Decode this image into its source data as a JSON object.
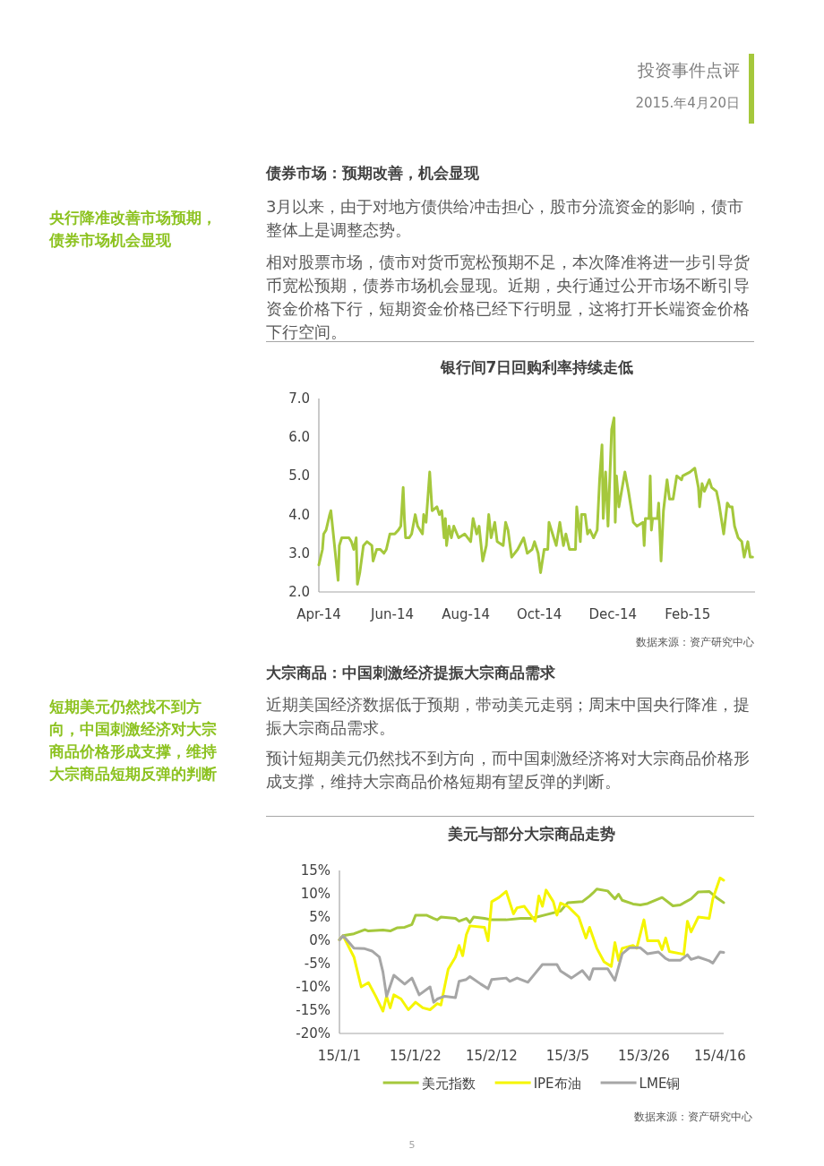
{
  "chart_data": [
    {
      "type": "other",
      "title": "债券市场：预期改善，机会显现",
      "annotations": [
        "投资事件点评",
        "2015.年4月20日",
        "央行降准改善市场预期，债券市场机会显现",
        "3月以来，由于对地方债供给冲击担心，股市分流资金的影响，债市整体上是调整态势。",
        "相对股票市场，债市对货币宽松预期不足，本次降准将进一步引导货币宽松预期，债券市场机会显现。近期，央行通过公开市场不断引导资金价格下行，短期资金价格已经下行明显，这将打开长端资金价格下行空间。",
        "5"
      ]
    },
    {
      "type": "line",
      "title": "银行间7日回购利率持续走低",
      "annotations": [
        "数据来源：资产研究中心"
      ],
      "color": "#a5c83c",
      "x": [
        "2014-04-01",
        "2014-04-04",
        "2014-04-05",
        "2014-04-07",
        "2014-04-10",
        "2014-04-11",
        "2014-04-13",
        "2014-04-17",
        "2014-04-18",
        "2014-04-20",
        "2014-04-23",
        "2014-04-26",
        "2014-04-28",
        "2014-04-30",
        "2014-05-02",
        "2014-05-03",
        "2014-05-05",
        "2014-05-08",
        "2014-05-11",
        "2014-05-15",
        "2014-05-16",
        "2014-05-19",
        "2014-05-22",
        "2014-05-25",
        "2014-05-27",
        "2014-05-30",
        "2014-06-03",
        "2014-06-06",
        "2014-06-08",
        "2014-06-10",
        "2014-06-11",
        "2014-06-12",
        "2014-06-15",
        "2014-06-17",
        "2014-06-20",
        "2014-06-22",
        "2014-06-26",
        "2014-06-27",
        "2014-06-29",
        "2014-07-02",
        "2014-07-04",
        "2014-07-08",
        "2014-07-10",
        "2014-07-12",
        "2014-07-14",
        "2014-07-15",
        "2014-07-16",
        "2014-07-18",
        "2014-07-20",
        "2014-07-22",
        "2014-07-26",
        "2014-07-31",
        "2014-08-05",
        "2014-08-07",
        "2014-08-10",
        "2014-08-12",
        "2014-08-15",
        "2014-08-18",
        "2014-08-20",
        "2014-08-22",
        "2014-08-25",
        "2014-08-27",
        "2014-09-01",
        "2014-09-03",
        "2014-09-05",
        "2014-09-08",
        "2014-09-13",
        "2014-09-18",
        "2014-09-21",
        "2014-09-25",
        "2014-09-27",
        "2014-09-30",
        "2014-10-02",
        "2014-10-05",
        "2014-10-08",
        "2014-10-09",
        "2014-10-12",
        "2014-10-15",
        "2014-10-18",
        "2014-10-21",
        "2014-10-23",
        "2014-10-26",
        "2014-10-31",
        "2014-11-01",
        "2014-11-04",
        "2014-11-05",
        "2014-11-08",
        "2014-11-10",
        "2014-11-12",
        "2014-11-15",
        "2014-11-18",
        "2014-11-20",
        "2014-11-22",
        "2014-11-23",
        "2014-11-25",
        "2014-11-27",
        "2014-11-30",
        "2014-12-02",
        "2014-12-03",
        "2014-12-04",
        "2014-12-06",
        "2014-12-11",
        "2014-12-14",
        "2014-12-18",
        "2014-12-21",
        "2014-12-26",
        "2014-12-27",
        "2014-12-28",
        "2014-12-31",
        "2015-01-01",
        "2015-01-02",
        "2015-01-03",
        "2015-01-07",
        "2015-01-08",
        "2015-01-10",
        "2015-01-12",
        "2015-01-15",
        "2015-01-17",
        "2015-01-20",
        "2015-01-23",
        "2015-01-27",
        "2015-01-28",
        "2015-02-03",
        "2015-02-07",
        "2015-02-10",
        "2015-02-11",
        "2015-02-13",
        "2015-02-15",
        "2015-02-19",
        "2015-02-21",
        "2015-02-25",
        "2015-02-27",
        "2015-03-03",
        "2015-03-06",
        "2015-03-08",
        "2015-03-10",
        "2015-03-12",
        "2015-03-15",
        "2015-03-18",
        "2015-03-20",
        "2015-03-23",
        "2015-03-25",
        "2015-03-27"
      ],
      "values": [
        2.7,
        3.1,
        3.5,
        3.6,
        4.0,
        4.1,
        3.5,
        2.3,
        3.2,
        3.4,
        3.4,
        3.4,
        3.3,
        3.1,
        3.4,
        2.2,
        2.5,
        3.2,
        3.3,
        3.2,
        2.8,
        3.1,
        3.1,
        3.0,
        3.1,
        3.5,
        3.5,
        3.6,
        3.7,
        4.7,
        3.9,
        3.4,
        3.4,
        3.5,
        4.0,
        3.7,
        3.5,
        4.0,
        3.8,
        5.1,
        4.1,
        4.2,
        4.0,
        4.1,
        3.4,
        3.9,
        3.2,
        3.7,
        3.4,
        3.7,
        3.4,
        3.5,
        3.3,
        3.9,
        3.5,
        3.7,
        2.8,
        3.2,
        4.0,
        3.4,
        3.8,
        3.3,
        3.2,
        3.8,
        3.6,
        2.9,
        3.1,
        3.4,
        3.0,
        3.1,
        3.3,
        3.0,
        2.5,
        3.1,
        3.1,
        3.8,
        3.5,
        3.2,
        3.8,
        3.2,
        3.5,
        3.1,
        3.1,
        4.2,
        3.3,
        4.0,
        4.0,
        3.5,
        3.6,
        3.4,
        3.6,
        4.9,
        5.8,
        3.9,
        5.1,
        3.7,
        6.2,
        6.5,
        3.8,
        5.0,
        4.2,
        5.1,
        4.6,
        3.8,
        3.7,
        3.8,
        3.2,
        3.9,
        3.9,
        5.0,
        3.6,
        3.9,
        3.9,
        4.3,
        2.8,
        4.1,
        4.9,
        4.4,
        4.4,
        5.0,
        4.9,
        5.0,
        5.1,
        5.2,
        4.7,
        4.2,
        4.8,
        4.6,
        4.9,
        4.7,
        4.6,
        4.3,
        3.5,
        4.3,
        4.2,
        4.2,
        3.7,
        3.4,
        3.3,
        2.9,
        3.3,
        2.9,
        2.9
      ],
      "xlim": [
        "2014-04-01",
        "2015-03-29"
      ],
      "xticks": [
        {
          "value": "2014-04-01",
          "label": "Apr-14"
        },
        {
          "value": "2014-06-01",
          "label": "Jun-14"
        },
        {
          "value": "2014-08-01",
          "label": "Aug-14"
        },
        {
          "value": "2014-10-01",
          "label": "Oct-14"
        },
        {
          "value": "2014-12-01",
          "label": "Dec-14"
        },
        {
          "value": "2015-02-01",
          "label": "Feb-15"
        }
      ],
      "ylim": [
        2,
        7
      ],
      "yticks": [
        {
          "value": 2,
          "label": "2.0"
        },
        {
          "value": 3,
          "label": "3.0"
        },
        {
          "value": 4,
          "label": "4.0"
        },
        {
          "value": 5,
          "label": "5.0"
        },
        {
          "value": 6,
          "label": "6.0"
        },
        {
          "value": 7,
          "label": "7.0"
        }
      ]
    },
    {
      "type": "other",
      "title": "大宗商品：中国刺激经济提振大宗商品需求",
      "annotations": [
        "短期美元仍然找不到方向，中国刺激经济对大宗商品价格形成支撑，维持大宗商品短期反弹的判断",
        "近期美国经济数据低于预期，带动美元走弱；周末中国央行降准，提振大宗商品需求。",
        "预计短期美元仍然找不到方向，而中国刺激经济将对大宗商品价格形成支撑，维持大宗商品价格短期有望反弹的判断。"
      ]
    },
    {
      "type": "line",
      "title": "美元与部分大宗商品走势",
      "annotations": [
        "数据来源：资产研究中心"
      ],
      "legend": "bottom",
      "xlim": [
        "2015-01-01",
        "2015-04-17"
      ],
      "xticks": [
        {
          "value": "2015-01-01",
          "label": "15/1/1"
        },
        {
          "value": "2015-01-22",
          "label": "15/1/22"
        },
        {
          "value": "2015-02-12",
          "label": "15/2/12"
        },
        {
          "value": "2015-03-05",
          "label": "15/3/5"
        },
        {
          "value": "2015-03-26",
          "label": "15/3/26"
        },
        {
          "value": "2015-04-16",
          "label": "15/4/16"
        }
      ],
      "ylim": [
        -20,
        15
      ],
      "yticks": [
        {
          "value": -20,
          "label": "-20%"
        },
        {
          "value": -15,
          "label": "-15%"
        },
        {
          "value": -10,
          "label": "-10%"
        },
        {
          "value": -5,
          "label": "-5%"
        },
        {
          "value": 0,
          "label": "0%"
        },
        {
          "value": 5,
          "label": "5%"
        },
        {
          "value": 10,
          "label": "10%"
        },
        {
          "value": 15,
          "label": "15%"
        }
      ],
      "series": [
        {
          "name": "美元指数",
          "color": "#a5c83c",
          "x": [
            "2015-01-01",
            "2015-01-02",
            "2015-01-05",
            "2015-01-08",
            "2015-01-09",
            "2015-01-13",
            "2015-01-15",
            "2015-01-17",
            "2015-01-19",
            "2015-01-21",
            "2015-01-22",
            "2015-01-25",
            "2015-01-27",
            "2015-01-28",
            "2015-01-29",
            "2015-02-02",
            "2015-02-03",
            "2015-02-05",
            "2015-02-06",
            "2015-02-07",
            "2015-02-10",
            "2015-02-12",
            "2015-02-16",
            "2015-02-20",
            "2015-02-23",
            "2015-02-27",
            "2015-03-03",
            "2015-03-05",
            "2015-03-09",
            "2015-03-11",
            "2015-03-12",
            "2015-03-13",
            "2015-03-16",
            "2015-03-18",
            "2015-03-19",
            "2015-03-20",
            "2015-03-23",
            "2015-03-25",
            "2015-03-27",
            "2015-03-31",
            "2015-04-03",
            "2015-04-05",
            "2015-04-08",
            "2015-04-10",
            "2015-04-13",
            "2015-04-15",
            "2015-04-17"
          ],
          "values": [
            0.1,
            1.0,
            1.4,
            2.3,
            2.0,
            2.2,
            2.0,
            2.7,
            2.8,
            3.4,
            5.4,
            5.4,
            4.7,
            4.4,
            5.0,
            4.7,
            4.1,
            4.7,
            3.8,
            5.0,
            4.7,
            4.4,
            4.4,
            4.7,
            4.7,
            5.5,
            6.3,
            8.1,
            8.3,
            9.5,
            10.2,
            11.0,
            10.6,
            8.9,
            9.9,
            8.6,
            7.8,
            7.6,
            7.9,
            9.2,
            7.4,
            7.6,
            8.9,
            10.4,
            10.5,
            9.2,
            8.1
          ]
        },
        {
          "name": "IPE布油",
          "color": "#f5f500",
          "x": [
            "2015-01-01",
            "2015-01-02",
            "2015-01-05",
            "2015-01-06",
            "2015-01-07",
            "2015-01-09",
            "2015-01-11",
            "2015-01-13",
            "2015-01-14",
            "2015-01-15",
            "2015-01-16",
            "2015-01-18",
            "2015-01-20",
            "2015-01-22",
            "2015-01-24",
            "2015-01-26",
            "2015-01-28",
            "2015-01-29",
            "2015-01-30",
            "2015-01-31",
            "2015-02-02",
            "2015-02-03",
            "2015-02-04",
            "2015-02-05",
            "2015-02-06",
            "2015-02-10",
            "2015-02-11",
            "2015-02-12",
            "2015-02-14",
            "2015-02-16",
            "2015-02-18",
            "2015-02-19",
            "2015-02-21",
            "2015-02-24",
            "2015-02-25",
            "2015-02-26",
            "2015-02-27",
            "2015-03-01",
            "2015-03-02",
            "2015-03-03",
            "2015-03-05",
            "2015-03-08",
            "2015-03-10",
            "2015-03-11",
            "2015-03-13",
            "2015-03-15",
            "2015-03-17",
            "2015-03-18",
            "2015-03-19",
            "2015-03-20",
            "2015-03-23",
            "2015-03-24",
            "2015-03-26",
            "2015-03-27",
            "2015-03-30",
            "2015-03-31",
            "2015-04-01",
            "2015-04-02",
            "2015-04-06",
            "2015-04-07",
            "2015-04-08",
            "2015-04-10",
            "2015-04-13",
            "2015-04-14",
            "2015-04-16",
            "2015-04-17"
          ],
          "values": [
            0.1,
            1.0,
            -3.6,
            -6.8,
            -10.0,
            -9.1,
            -12.0,
            -15.2,
            -12.0,
            -14.5,
            -11.7,
            -12.6,
            -14.9,
            -13.3,
            -14.5,
            -14.9,
            -13.6,
            -13.9,
            -10.0,
            -6.2,
            -3.6,
            -1.1,
            -3.3,
            1.2,
            3.1,
            2.8,
            -0.1,
            8.3,
            9.2,
            10.5,
            5.7,
            7.0,
            7.3,
            4.1,
            9.5,
            7.3,
            10.8,
            8.3,
            5.4,
            8.0,
            7.3,
            5.0,
            0.5,
            2.8,
            -1.7,
            -4.6,
            -5.6,
            -0.5,
            -4.3,
            -1.7,
            -1.1,
            -1.7,
            4.4,
            -0.1,
            -0.1,
            -2.0,
            0.5,
            -2.4,
            -3.0,
            4.1,
            1.8,
            5.0,
            4.7,
            8.9,
            13.4,
            12.9
          ]
        },
        {
          "name": "LME铜",
          "color": "#a6a6a6",
          "x": [
            "2015-01-01",
            "2015-01-02",
            "2015-01-05",
            "2015-01-08",
            "2015-01-10",
            "2015-01-12",
            "2015-01-13",
            "2015-01-14",
            "2015-01-16",
            "2015-01-19",
            "2015-01-21",
            "2015-01-23",
            "2015-01-26",
            "2015-01-27",
            "2015-01-28",
            "2015-01-30",
            "2015-02-02",
            "2015-02-03",
            "2015-02-05",
            "2015-02-06",
            "2015-02-09",
            "2015-02-11",
            "2015-02-12",
            "2015-02-16",
            "2015-02-17",
            "2015-02-19",
            "2015-02-22",
            "2015-02-24",
            "2015-02-26",
            "2015-03-02",
            "2015-03-03",
            "2015-03-06",
            "2015-03-09",
            "2015-03-11",
            "2015-03-12",
            "2015-03-16",
            "2015-03-18",
            "2015-03-20",
            "2015-03-22",
            "2015-03-25",
            "2015-03-27",
            "2015-03-30",
            "2015-04-01",
            "2015-04-02",
            "2015-04-05",
            "2015-04-07",
            "2015-04-08",
            "2015-04-10",
            "2015-04-13",
            "2015-04-14",
            "2015-04-16",
            "2015-04-17"
          ],
          "values": [
            0.1,
            1.0,
            -1.7,
            -1.8,
            -2.3,
            -3.6,
            -6.8,
            -12.0,
            -7.5,
            -9.4,
            -8.1,
            -11.7,
            -10.0,
            -13.3,
            -12.6,
            -12.0,
            -12.3,
            -8.8,
            -8.4,
            -7.8,
            -9.4,
            -10.4,
            -8.4,
            -8.1,
            -8.8,
            -8.1,
            -9.0,
            -7.1,
            -5.2,
            -5.2,
            -6.6,
            -8.1,
            -6.5,
            -8.4,
            -6.1,
            -6.1,
            -8.6,
            -2.9,
            -1.6,
            -1.6,
            -2.9,
            -2.5,
            -3.9,
            -4.3,
            -4.3,
            -3.1,
            -4.1,
            -3.6,
            -4.4,
            -4.9,
            -2.5,
            -2.6
          ]
        }
      ]
    }
  ]
}
